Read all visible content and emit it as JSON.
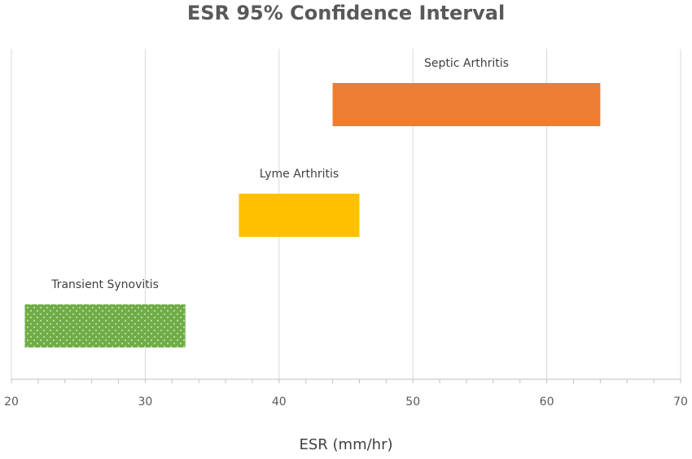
{
  "chart_data": {
    "type": "bar",
    "orientation": "horizontal-range",
    "title": "ESR 95% Confidence Interval",
    "xlabel": "ESR (mm/hr)",
    "ylabel": "",
    "xlim": [
      20,
      70
    ],
    "xticks": [
      "20",
      "30",
      "40",
      "50",
      "60",
      "70"
    ],
    "grid": true,
    "legend": "none",
    "series": [
      {
        "name": "Transient Synovitis",
        "low": 21,
        "high": 33,
        "color": "#70ad47",
        "pattern": "dotted"
      },
      {
        "name": "Lyme Arthritis",
        "low": 37,
        "high": 46,
        "color": "#ffc000",
        "pattern": "solid"
      },
      {
        "name": "Septic Arthritis",
        "low": 44,
        "high": 64,
        "color": "#ed7d31",
        "pattern": "solid"
      }
    ]
  }
}
